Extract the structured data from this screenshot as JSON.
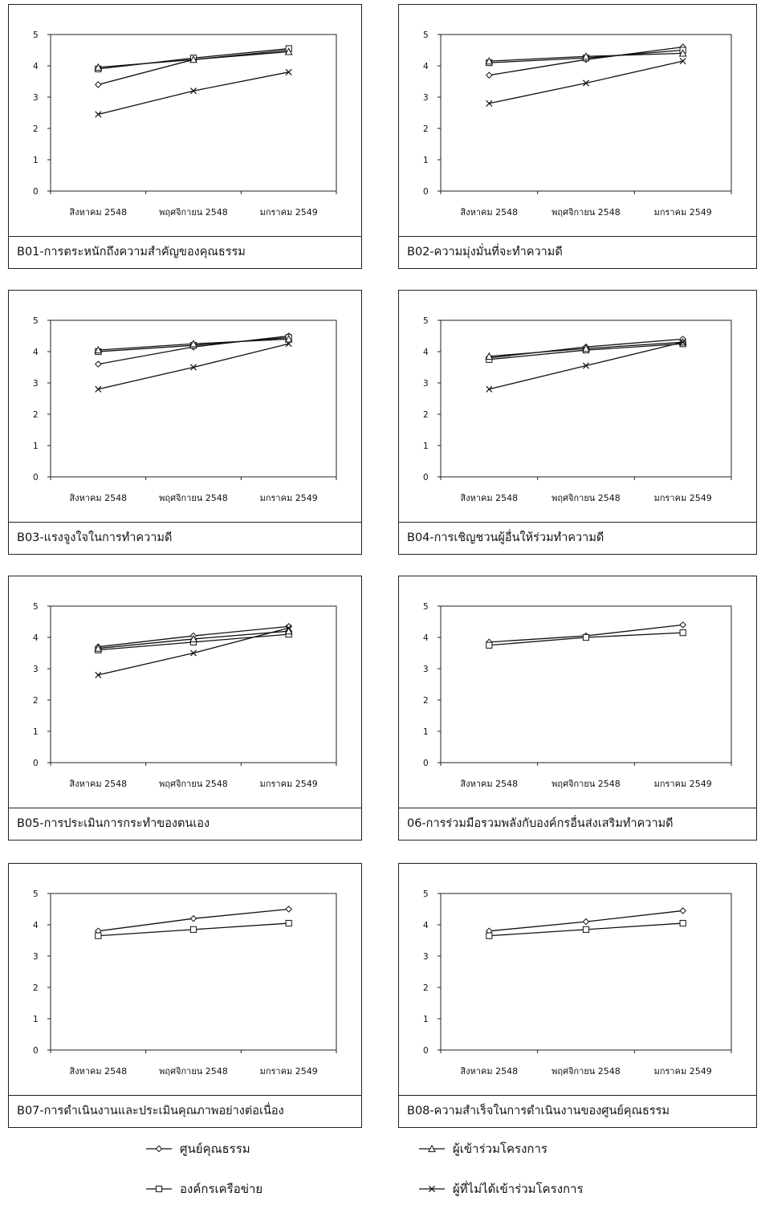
{
  "chart_data": [
    {
      "type": "line",
      "title": "B01-การตระหนักถึงความสำคัญของคุณธรรม",
      "categories": [
        "สิงหาคม 2548",
        "พฤศจิกายน 2548",
        "มกราคม 2549"
      ],
      "ylim": [
        0,
        5
      ],
      "yticks": [
        "0",
        "1",
        "2",
        "3",
        "4",
        "5"
      ],
      "series": [
        {
          "name": "ศูนย์คุณธรรม",
          "marker": "diamond",
          "values": [
            3.4,
            4.2,
            4.5
          ]
        },
        {
          "name": "องค์กรเครือข่าย",
          "marker": "square",
          "values": [
            3.9,
            4.25,
            4.55
          ]
        },
        {
          "name": "ผู้เข้าร่วมโครงการ",
          "marker": "triangle",
          "values": [
            3.95,
            4.2,
            4.45
          ]
        },
        {
          "name": "ผู้ที่ไม่ได้เข้าร่วมโครงการ",
          "marker": "cross",
          "values": [
            2.45,
            3.2,
            3.8
          ]
        }
      ]
    },
    {
      "type": "line",
      "title": "B02-ความมุ่งมั่นที่จะทำความดี",
      "categories": [
        "สิงหาคม 2548",
        "พฤศจิกายน 2548",
        "มกราคม 2549"
      ],
      "ylim": [
        0,
        5
      ],
      "yticks": [
        "0",
        "1",
        "2",
        "3",
        "4",
        "5"
      ],
      "series": [
        {
          "name": "ศูนย์คุณธรรม",
          "marker": "diamond",
          "values": [
            3.7,
            4.2,
            4.6
          ]
        },
        {
          "name": "องค์กรเครือข่าย",
          "marker": "square",
          "values": [
            4.1,
            4.25,
            4.5
          ]
        },
        {
          "name": "ผู้เข้าร่วมโครงการ",
          "marker": "triangle",
          "values": [
            4.15,
            4.3,
            4.4
          ]
        },
        {
          "name": "ผู้ที่ไม่ได้เข้าร่วมโครงการ",
          "marker": "cross",
          "values": [
            2.8,
            3.45,
            4.15
          ]
        }
      ]
    },
    {
      "type": "line",
      "title": "B03-แรงจูงใจในการทำความดี",
      "categories": [
        "สิงหาคม 2548",
        "พฤศจิกายน 2548",
        "มกราคม 2549"
      ],
      "ylim": [
        0,
        5
      ],
      "yticks": [
        "0",
        "1",
        "2",
        "3",
        "4",
        "5"
      ],
      "series": [
        {
          "name": "ศูนย์คุณธรรม",
          "marker": "diamond",
          "values": [
            3.6,
            4.15,
            4.5
          ]
        },
        {
          "name": "องค์กรเครือข่าย",
          "marker": "square",
          "values": [
            4.0,
            4.2,
            4.45
          ]
        },
        {
          "name": "ผู้เข้าร่วมโครงการ",
          "marker": "triangle",
          "values": [
            4.05,
            4.25,
            4.4
          ]
        },
        {
          "name": "ผู้ที่ไม่ได้เข้าร่วมโครงการ",
          "marker": "cross",
          "values": [
            2.8,
            3.5,
            4.25
          ]
        }
      ]
    },
    {
      "type": "line",
      "title": "B04-การเชิญชวนผู้อื่นให้ร่วมทำความดี",
      "categories": [
        "สิงหาคม 2548",
        "พฤศจิกายน 2548",
        "มกราคม 2549"
      ],
      "ylim": [
        0,
        5
      ],
      "yticks": [
        "0",
        "1",
        "2",
        "3",
        "4",
        "5"
      ],
      "series": [
        {
          "name": "ศูนย์คุณธรรม",
          "marker": "diamond",
          "values": [
            3.8,
            4.15,
            4.4
          ]
        },
        {
          "name": "องค์กรเครือข่าย",
          "marker": "square",
          "values": [
            3.75,
            4.05,
            4.25
          ]
        },
        {
          "name": "ผู้เข้าร่วมโครงการ",
          "marker": "triangle",
          "values": [
            3.85,
            4.1,
            4.3
          ]
        },
        {
          "name": "ผู้ที่ไม่ได้เข้าร่วมโครงการ",
          "marker": "cross",
          "values": [
            2.8,
            3.55,
            4.3
          ]
        }
      ]
    },
    {
      "type": "line",
      "title": "B05-การประเมินการกระทำของตนเอง",
      "categories": [
        "สิงหาคม 2548",
        "พฤศจิกายน 2548",
        "มกราคม 2549"
      ],
      "ylim": [
        0,
        5
      ],
      "yticks": [
        "0",
        "1",
        "2",
        "3",
        "4",
        "5"
      ],
      "series": [
        {
          "name": "ศูนย์คุณธรรม",
          "marker": "diamond",
          "values": [
            3.7,
            4.05,
            4.35
          ]
        },
        {
          "name": "องค์กรเครือข่าย",
          "marker": "square",
          "values": [
            3.6,
            3.85,
            4.1
          ]
        },
        {
          "name": "ผู้เข้าร่วมโครงการ",
          "marker": "triangle",
          "values": [
            3.65,
            3.95,
            4.2
          ]
        },
        {
          "name": "ผู้ที่ไม่ได้เข้าร่วมโครงการ",
          "marker": "cross",
          "values": [
            2.8,
            3.5,
            4.3
          ]
        }
      ]
    },
    {
      "type": "line",
      "title": "06-การร่วมมือรวมพลังกับองค์กรอื่นส่งเสริมทำความดี",
      "categories": [
        "สิงหาคม 2548",
        "พฤศจิกายน 2548",
        "มกราคม 2549"
      ],
      "ylim": [
        0,
        5
      ],
      "yticks": [
        "0",
        "1",
        "2",
        "3",
        "4",
        "5"
      ],
      "series": [
        {
          "name": "ศูนย์คุณธรรม",
          "marker": "diamond",
          "values": [
            3.85,
            4.05,
            4.4
          ]
        },
        {
          "name": "องค์กรเครือข่าย",
          "marker": "square",
          "values": [
            3.75,
            4.0,
            4.15
          ]
        }
      ]
    },
    {
      "type": "line",
      "title": "B07-การดำเนินงานและประเมินคุณภาพอย่างต่อเนื่อง",
      "categories": [
        "สิงหาคม 2548",
        "พฤศจิกายน 2548",
        "มกราคม 2549"
      ],
      "ylim": [
        0,
        5
      ],
      "yticks": [
        "0",
        "1",
        "2",
        "3",
        "4",
        "5"
      ],
      "series": [
        {
          "name": "ศูนย์คุณธรรม",
          "marker": "diamond",
          "values": [
            3.8,
            4.2,
            4.5
          ]
        },
        {
          "name": "องค์กรเครือข่าย",
          "marker": "square",
          "values": [
            3.65,
            3.85,
            4.05
          ]
        }
      ]
    },
    {
      "type": "line",
      "title": "B08-ความสำเร็จในการดำเนินงานของศูนย์คุณธรรม",
      "categories": [
        "สิงหาคม 2548",
        "พฤศจิกายน 2548",
        "มกราคม 2549"
      ],
      "ylim": [
        0,
        5
      ],
      "yticks": [
        "0",
        "1",
        "2",
        "3",
        "4",
        "5"
      ],
      "series": [
        {
          "name": "ศูนย์คุณธรรม",
          "marker": "diamond",
          "values": [
            3.8,
            4.1,
            4.45
          ]
        },
        {
          "name": "องค์กรเครือข่าย",
          "marker": "square",
          "values": [
            3.65,
            3.85,
            4.05
          ]
        }
      ]
    }
  ],
  "legend": [
    {
      "label": "ศูนย์คุณธรรม",
      "marker": "diamond"
    },
    {
      "label": "ผู้เข้าร่วมโครงการ",
      "marker": "triangle"
    },
    {
      "label": "องค์กรเครือข่าย",
      "marker": "square"
    },
    {
      "label": "ผู้ที่ไม่ได้เข้าร่วมโครงการ",
      "marker": "cross"
    }
  ]
}
